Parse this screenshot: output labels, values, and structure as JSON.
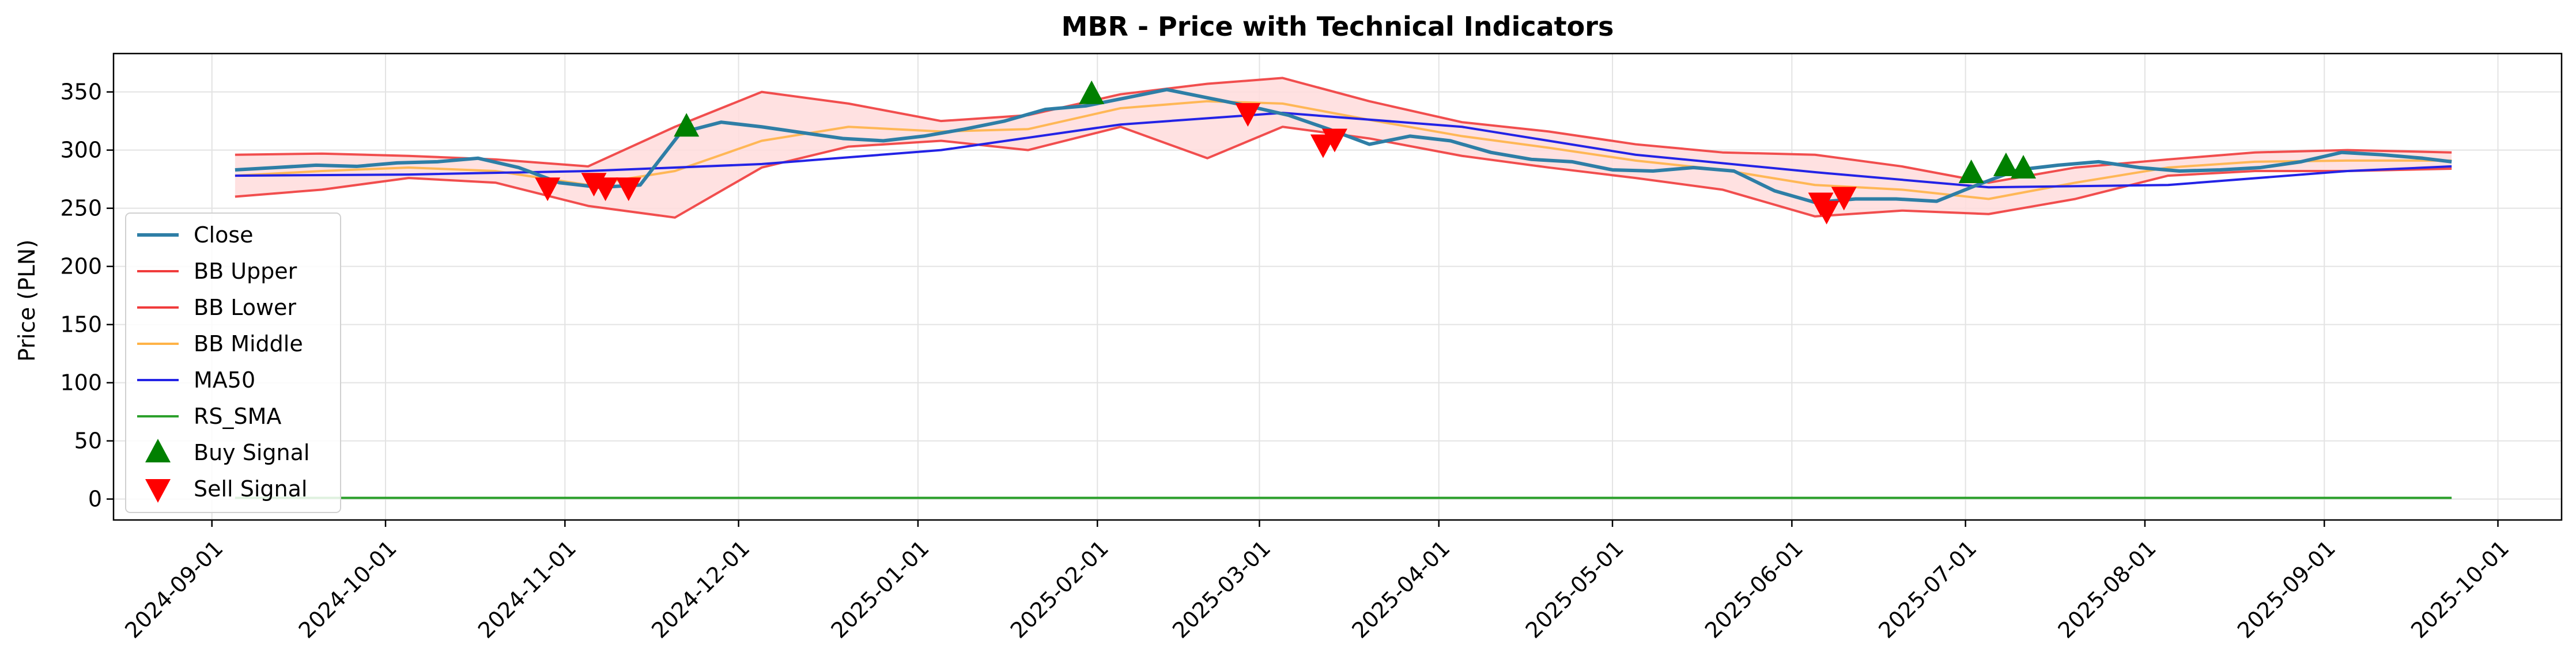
{
  "chart_data": {
    "type": "line",
    "title": "MBR - Price with Technical Indicators",
    "xlabel": "",
    "ylabel": "Price (PLN)",
    "ylim": [
      -18,
      383
    ],
    "yticks": [
      0,
      50,
      100,
      150,
      200,
      250,
      300,
      350
    ],
    "xlim": [
      "2024-08-15",
      "2025-10-12"
    ],
    "xticks": [
      "2024-09-01",
      "2024-10-01",
      "2024-11-01",
      "2024-12-01",
      "2025-01-01",
      "2025-02-01",
      "2025-03-01",
      "2025-04-01",
      "2025-05-01",
      "2025-06-01",
      "2025-07-01",
      "2025-08-01",
      "2025-09-01",
      "2025-10-01"
    ],
    "grid": true,
    "legend_position": "center-left",
    "legend": [
      "Close",
      "BB Upper",
      "BB Lower",
      "BB Middle",
      "MA50",
      "RS_SMA",
      "Buy Signal",
      "Sell Signal"
    ],
    "colors": {
      "close": "#2e7ea6",
      "bb_upper": "#f03c3c",
      "bb_lower": "#f03c3c",
      "bb_middle": "#ffb347",
      "ma50": "#2323e6",
      "rs_sma": "#2ca02c",
      "buy": "#008000",
      "sell": "#ff0000",
      "band_fill": "#ffdcdc"
    },
    "series": [
      {
        "name": "Close",
        "x": [
          "2024-09-05",
          "2024-09-12",
          "2024-09-19",
          "2024-09-26",
          "2024-10-03",
          "2024-10-10",
          "2024-10-17",
          "2024-10-24",
          "2024-10-31",
          "2024-11-07",
          "2024-11-14",
          "2024-11-21",
          "2024-11-28",
          "2024-12-05",
          "2024-12-12",
          "2024-12-19",
          "2024-12-26",
          "2025-01-02",
          "2025-01-09",
          "2025-01-16",
          "2025-01-23",
          "2025-01-30",
          "2025-02-06",
          "2025-02-13",
          "2025-02-20",
          "2025-02-27",
          "2025-03-06",
          "2025-03-13",
          "2025-03-20",
          "2025-03-27",
          "2025-04-03",
          "2025-04-10",
          "2025-04-17",
          "2025-04-24",
          "2025-05-01",
          "2025-05-08",
          "2025-05-15",
          "2025-05-22",
          "2025-05-29",
          "2025-06-05",
          "2025-06-12",
          "2025-06-19",
          "2025-06-26",
          "2025-07-03",
          "2025-07-10",
          "2025-07-17",
          "2025-07-24",
          "2025-07-31",
          "2025-08-07",
          "2025-08-14",
          "2025-08-21",
          "2025-08-28",
          "2025-09-04",
          "2025-09-11",
          "2025-09-18",
          "2025-09-23"
        ],
        "values": [
          283,
          285,
          287,
          286,
          289,
          290,
          293,
          285,
          272,
          268,
          270,
          315,
          324,
          320,
          315,
          310,
          308,
          312,
          318,
          325,
          335,
          338,
          345,
          352,
          345,
          338,
          330,
          318,
          305,
          312,
          308,
          298,
          292,
          290,
          283,
          282,
          285,
          282,
          265,
          255,
          258,
          258,
          256,
          270,
          283,
          287,
          290,
          285,
          282,
          283,
          285,
          290,
          298,
          296,
          293,
          290
        ]
      },
      {
        "name": "BB Upper",
        "x": [
          "2024-09-05",
          "2024-09-20",
          "2024-10-05",
          "2024-10-20",
          "2024-11-05",
          "2024-11-20",
          "2024-12-05",
          "2024-12-20",
          "2025-01-05",
          "2025-01-20",
          "2025-02-05",
          "2025-02-20",
          "2025-03-05",
          "2025-03-20",
          "2025-04-05",
          "2025-04-20",
          "2025-05-05",
          "2025-05-20",
          "2025-06-05",
          "2025-06-20",
          "2025-07-05",
          "2025-07-20",
          "2025-08-05",
          "2025-08-20",
          "2025-09-05",
          "2025-09-23"
        ],
        "values": [
          296,
          297,
          295,
          292,
          286,
          320,
          350,
          340,
          325,
          330,
          348,
          357,
          362,
          342,
          324,
          316,
          305,
          298,
          296,
          286,
          272,
          285,
          292,
          298,
          300,
          298
        ]
      },
      {
        "name": "BB Lower",
        "x": [
          "2024-09-05",
          "2024-09-20",
          "2024-10-05",
          "2024-10-20",
          "2024-11-05",
          "2024-11-20",
          "2024-12-05",
          "2024-12-20",
          "2025-01-05",
          "2025-01-20",
          "2025-02-05",
          "2025-02-20",
          "2025-03-05",
          "2025-03-20",
          "2025-04-05",
          "2025-04-20",
          "2025-05-05",
          "2025-05-20",
          "2025-06-05",
          "2025-06-20",
          "2025-07-05",
          "2025-07-20",
          "2025-08-05",
          "2025-08-20",
          "2025-09-05",
          "2025-09-23"
        ],
        "values": [
          260,
          266,
          276,
          272,
          252,
          242,
          285,
          303,
          308,
          300,
          320,
          293,
          320,
          310,
          295,
          285,
          276,
          266,
          243,
          248,
          245,
          258,
          278,
          282,
          282,
          284
        ]
      },
      {
        "name": "BB Middle",
        "x": [
          "2024-09-05",
          "2024-09-20",
          "2024-10-05",
          "2024-10-20",
          "2024-11-05",
          "2024-11-20",
          "2024-12-05",
          "2024-12-20",
          "2025-01-05",
          "2025-01-20",
          "2025-02-05",
          "2025-02-20",
          "2025-03-05",
          "2025-03-20",
          "2025-04-05",
          "2025-04-20",
          "2025-05-05",
          "2025-05-20",
          "2025-06-05",
          "2025-06-20",
          "2025-07-05",
          "2025-07-20",
          "2025-08-05",
          "2025-08-20",
          "2025-09-05",
          "2025-09-23"
        ],
        "values": [
          278,
          282,
          285,
          282,
          270,
          282,
          308,
          320,
          316,
          318,
          336,
          342,
          340,
          326,
          312,
          302,
          291,
          283,
          270,
          266,
          258,
          272,
          285,
          290,
          291,
          291
        ]
      },
      {
        "name": "MA50",
        "x": [
          "2024-09-05",
          "2024-10-05",
          "2024-11-05",
          "2024-12-05",
          "2025-01-05",
          "2025-02-05",
          "2025-03-05",
          "2025-04-05",
          "2025-05-05",
          "2025-06-05",
          "2025-07-05",
          "2025-08-05",
          "2025-09-05",
          "2025-09-23"
        ],
        "values": [
          278,
          279,
          282,
          288,
          300,
          322,
          332,
          320,
          296,
          281,
          268,
          270,
          282,
          286
        ]
      },
      {
        "name": "RS_SMA",
        "x": [
          "2024-09-05",
          "2025-09-23"
        ],
        "values": [
          1,
          1
        ]
      }
    ],
    "buy_signals": [
      {
        "x": "2024-11-22",
        "y": 320
      },
      {
        "x": "2025-01-31",
        "y": 348
      },
      {
        "x": "2025-07-02",
        "y": 280
      },
      {
        "x": "2025-07-08",
        "y": 286
      },
      {
        "x": "2025-07-11",
        "y": 284
      }
    ],
    "sell_signals": [
      {
        "x": "2024-10-29",
        "y": 268
      },
      {
        "x": "2024-11-06",
        "y": 272
      },
      {
        "x": "2024-11-08",
        "y": 268
      },
      {
        "x": "2024-11-12",
        "y": 268
      },
      {
        "x": "2025-02-27",
        "y": 332
      },
      {
        "x": "2025-03-12",
        "y": 305
      },
      {
        "x": "2025-03-14",
        "y": 310
      },
      {
        "x": "2025-06-06",
        "y": 255
      },
      {
        "x": "2025-06-07",
        "y": 248
      },
      {
        "x": "2025-06-10",
        "y": 260
      }
    ]
  }
}
